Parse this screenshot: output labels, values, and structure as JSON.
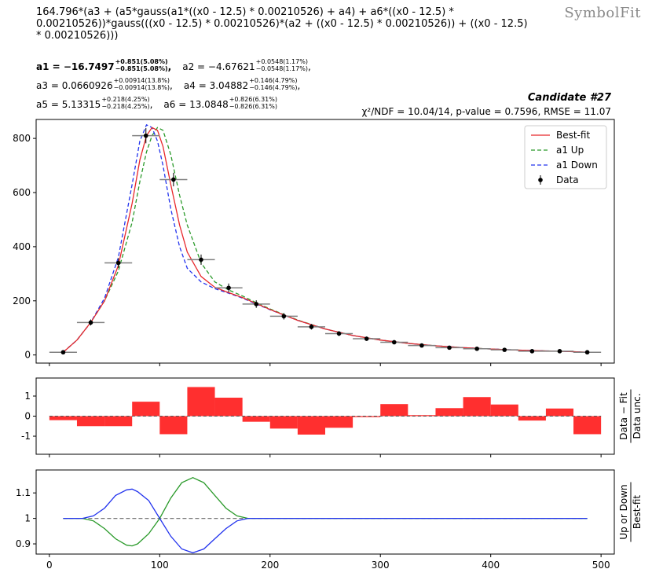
{
  "formula": "164.796*(a3 + (a5*gauss(a1*((x0 - 12.5) * 0.00210526) + a4) + a6*((x0 - 12.5) *\n0.00210526))*gauss(((x0 - 12.5) * 0.00210526)*(a2 + ((x0 - 12.5) * 0.00210526)) + ((x0 - 12.5)\n* 0.00210526)))",
  "brand": "SymbolFit",
  "params": [
    [
      {
        "name": "a1",
        "value": "−16.7497",
        "up": "+0.851(5.08%)",
        "down": "−0.851(5.08%)",
        "bold": true
      },
      {
        "name": "a2",
        "value": "−4.67621",
        "up": "+0.0548(1.17%)",
        "down": "−0.0548(1.17%)",
        "bold": false
      }
    ],
    [
      {
        "name": "a3",
        "value": "0.0660926",
        "up": "+0.00914(13.8%)",
        "down": "−0.00914(13.8%)",
        "bold": false
      },
      {
        "name": "a4",
        "value": "3.04882",
        "up": "+0.146(4.79%)",
        "down": "−0.146(4.79%)",
        "bold": false
      }
    ],
    [
      {
        "name": "a5",
        "value": "5.13315",
        "up": "+0.218(4.25%)",
        "down": "−0.218(4.25%)",
        "bold": false
      },
      {
        "name": "a6",
        "value": "13.0848",
        "up": "+0.826(6.31%)",
        "down": "−0.826(6.31%)",
        "bold": false
      }
    ]
  ],
  "candidate": "Candidate #27",
  "stats": "χ²/NDF = 10.04/14, p-value = 0.7596, RMSE = 11.07",
  "colors": {
    "best": "#e8282b",
    "up": "#2a9a2a",
    "down": "#2233ee",
    "data": "#000000",
    "resid": "#ff2f2f",
    "xerr": "#808080"
  },
  "chart_data": [
    {
      "type": "line",
      "panel": "main",
      "xlim": [
        -12,
        512
      ],
      "ylim": [
        -30,
        870
      ],
      "yticks": [
        0,
        200,
        400,
        600,
        800
      ],
      "legend_position": "top-right",
      "legend": [
        "Best-fit",
        "a1 Up",
        "a1 Down",
        "Data"
      ],
      "data": {
        "x": [
          12.5,
          37.5,
          62.5,
          87.5,
          112.5,
          137.5,
          162.5,
          187.5,
          212.5,
          237.5,
          262.5,
          287.5,
          312.5,
          337.5,
          362.5,
          387.5,
          412.5,
          437.5,
          462.5,
          487.5
        ],
        "y": [
          10,
          120,
          340,
          810,
          648,
          352,
          248,
          188,
          143,
          104,
          79,
          60,
          47,
          35,
          27,
          23,
          19,
          14,
          14,
          10
        ],
        "yerr": [
          3,
          11,
          18,
          28,
          25,
          19,
          16,
          14,
          12,
          10,
          9,
          8,
          7,
          6,
          5,
          5,
          4,
          4,
          4,
          3
        ],
        "xerr": 12.5
      },
      "curves": {
        "x": [
          12.5,
          25,
          37.5,
          50,
          62.5,
          75,
          82,
          88,
          93,
          98,
          103,
          110,
          118,
          125,
          137.5,
          150,
          162.5,
          175,
          187.5,
          200,
          225,
          250,
          275,
          300,
          325,
          350,
          375,
          400,
          425,
          450,
          475,
          487.5
        ],
        "best": [
          10,
          55,
          120,
          200,
          330,
          560,
          720,
          810,
          840,
          830,
          770,
          630,
          480,
          380,
          290,
          250,
          230,
          212,
          190,
          168,
          128,
          96,
          72,
          55,
          43,
          34,
          27,
          22,
          18,
          15,
          12,
          10
        ],
        "up": [
          10,
          55,
          120,
          200,
          310,
          490,
          640,
          750,
          810,
          840,
          830,
          740,
          590,
          480,
          340,
          270,
          240,
          218,
          193,
          170,
          129,
          96,
          72,
          55,
          43,
          34,
          27,
          22,
          18,
          15,
          12,
          10
        ],
        "down": [
          10,
          55,
          120,
          210,
          360,
          630,
          790,
          850,
          840,
          790,
          700,
          540,
          400,
          320,
          270,
          245,
          228,
          210,
          188,
          167,
          128,
          96,
          72,
          55,
          43,
          34,
          27,
          22,
          18,
          15,
          12,
          10
        ]
      }
    },
    {
      "type": "bar",
      "panel": "residual",
      "ylabel": "Data − Fit / Data unc.",
      "ylim": [
        -1.9,
        1.9
      ],
      "yticks": [
        -1,
        0,
        1
      ],
      "x": [
        12.5,
        37.5,
        62.5,
        87.5,
        112.5,
        137.5,
        162.5,
        187.5,
        212.5,
        237.5,
        262.5,
        287.5,
        312.5,
        337.5,
        362.5,
        387.5,
        412.5,
        437.5,
        462.5,
        487.5
      ],
      "values": [
        -0.2,
        -0.5,
        -0.5,
        0.72,
        -0.9,
        1.45,
        0.92,
        -0.28,
        -0.62,
        -0.92,
        -0.58,
        -0.05,
        0.6,
        0.05,
        0.4,
        0.95,
        0.58,
        -0.22,
        0.38,
        -0.9
      ]
    },
    {
      "type": "line",
      "panel": "ratio",
      "ylabel": "Up or Down / Best-fit",
      "ylim": [
        0.86,
        1.19
      ],
      "yticks": [
        0.9,
        1,
        1.1
      ],
      "yticklabels": [
        "0.9",
        "1",
        "1.1"
      ],
      "xticks": [
        0,
        100,
        200,
        300,
        400,
        500
      ],
      "x": [
        12.5,
        20,
        30,
        40,
        50,
        60,
        70,
        75,
        80,
        90,
        100,
        110,
        120,
        130,
        140,
        150,
        160,
        170,
        180,
        190,
        200,
        300,
        400,
        487.5
      ],
      "up": [
        1,
        1,
        1.0,
        0.99,
        0.96,
        0.92,
        0.895,
        0.892,
        0.9,
        0.94,
        1.0,
        1.08,
        1.14,
        1.16,
        1.14,
        1.09,
        1.04,
        1.01,
        1.0,
        1,
        1,
        1,
        1,
        1
      ],
      "down": [
        1,
        1,
        1.0,
        1.01,
        1.04,
        1.09,
        1.112,
        1.115,
        1.105,
        1.07,
        1.0,
        0.93,
        0.88,
        0.865,
        0.88,
        0.92,
        0.96,
        0.99,
        1.0,
        1,
        1,
        1,
        1,
        1
      ]
    }
  ]
}
